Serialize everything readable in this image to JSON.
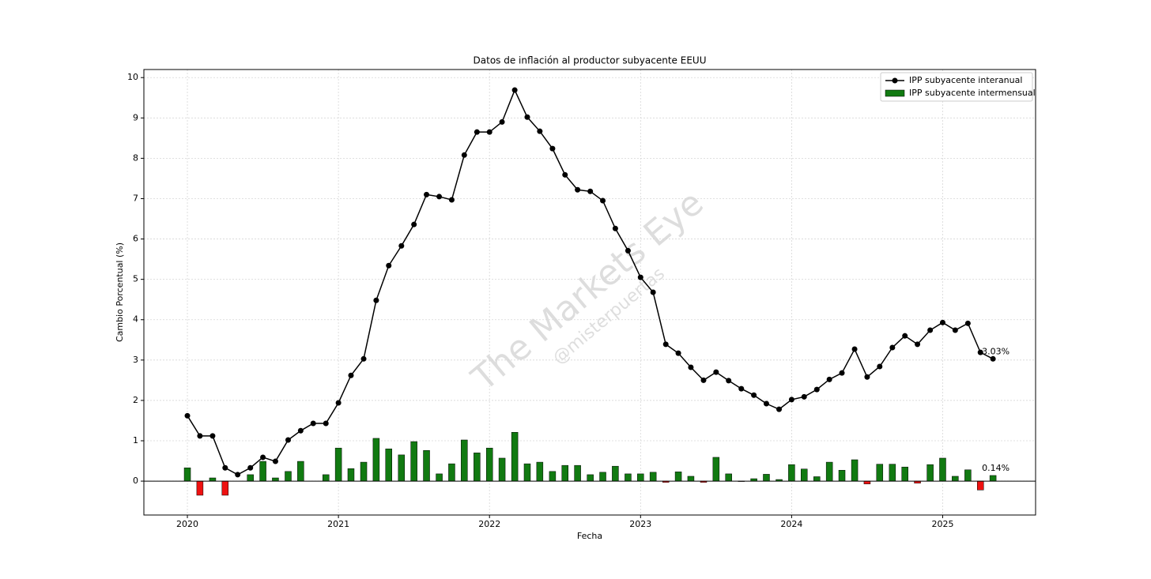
{
  "chart_data": {
    "type": "combo",
    "title": "Datos de inflación al productor subyacente EEUU",
    "xlabel": "Fecha",
    "ylabel": "Cambio Porcentual (%)",
    "watermark": "The Markets Eye",
    "watermark_sub": "@misterpuertas",
    "x": [
      2020,
      2020.083,
      2020.167,
      2020.25,
      2020.333,
      2020.417,
      2020.5,
      2020.583,
      2020.667,
      2020.75,
      2020.833,
      2020.917,
      2021,
      2021.083,
      2021.167,
      2021.25,
      2021.333,
      2021.417,
      2021.5,
      2021.583,
      2021.667,
      2021.75,
      2021.833,
      2021.917,
      2022,
      2022.083,
      2022.167,
      2022.25,
      2022.333,
      2022.417,
      2022.5,
      2022.583,
      2022.667,
      2022.75,
      2022.833,
      2022.917,
      2023,
      2023.083,
      2023.167,
      2023.25,
      2023.333,
      2023.417,
      2023.5,
      2023.583,
      2023.667,
      2023.75,
      2023.833,
      2023.917,
      2024,
      2024.083,
      2024.167,
      2024.25,
      2024.333,
      2024.417,
      2024.5,
      2024.583,
      2024.667,
      2024.75,
      2024.833,
      2024.917,
      2025,
      2025.083,
      2025.167,
      2025.25,
      2025.333
    ],
    "series": [
      {
        "name": "IPP subyacente interanual",
        "type": "line",
        "color": "#000000",
        "last_label": "3.03%",
        "values": [
          1.62,
          1.12,
          1.12,
          0.33,
          0.16,
          0.33,
          0.59,
          0.49,
          1.02,
          1.25,
          1.43,
          1.43,
          1.94,
          2.62,
          3.03,
          4.48,
          5.34,
          5.83,
          6.36,
          7.1,
          7.05,
          6.97,
          8.08,
          8.65,
          8.65,
          8.9,
          9.69,
          9.02,
          8.67,
          8.24,
          7.59,
          7.22,
          7.18,
          6.95,
          6.26,
          5.71,
          5.05,
          4.68,
          3.39,
          3.17,
          2.82,
          2.5,
          2.7,
          2.49,
          2.29,
          2.13,
          1.92,
          1.78,
          2.02,
          2.09,
          2.27,
          2.52,
          2.68,
          3.27,
          2.58,
          2.84,
          3.31,
          3.6,
          3.39,
          3.74,
          3.93,
          3.74,
          3.91,
          3.19,
          3.03
        ]
      },
      {
        "name": "IPP subyacente intermensual",
        "type": "bar",
        "color": "#117a11",
        "negative_color": "#ee1111",
        "last_label": "0.14%",
        "values": [
          0.33,
          -0.35,
          0.08,
          -0.35,
          0.0,
          0.16,
          0.49,
          0.08,
          0.24,
          0.49,
          0.0,
          0.16,
          0.82,
          0.31,
          0.47,
          1.06,
          0.8,
          0.65,
          0.98,
          0.76,
          0.18,
          0.43,
          1.02,
          0.7,
          0.82,
          0.57,
          1.21,
          0.43,
          0.47,
          0.24,
          0.39,
          0.39,
          0.16,
          0.22,
          0.37,
          0.18,
          0.18,
          0.22,
          -0.03,
          0.23,
          0.12,
          -0.03,
          0.59,
          0.18,
          -0.01,
          0.06,
          0.17,
          0.04,
          0.41,
          0.3,
          0.11,
          0.47,
          0.27,
          0.53,
          -0.07,
          0.42,
          0.42,
          0.35,
          -0.05,
          0.41,
          0.57,
          0.12,
          0.28,
          -0.22,
          0.14
        ]
      }
    ],
    "xlim": [
      2019.712,
      2025.615
    ],
    "xticks": [
      2020,
      2021,
      2022,
      2023,
      2024,
      2025
    ],
    "ylim": [
      -0.84,
      10.2
    ],
    "yticks": [
      0,
      1,
      2,
      3,
      4,
      5,
      6,
      7,
      8,
      9,
      10
    ],
    "grid": true,
    "legend": "upper right"
  }
}
